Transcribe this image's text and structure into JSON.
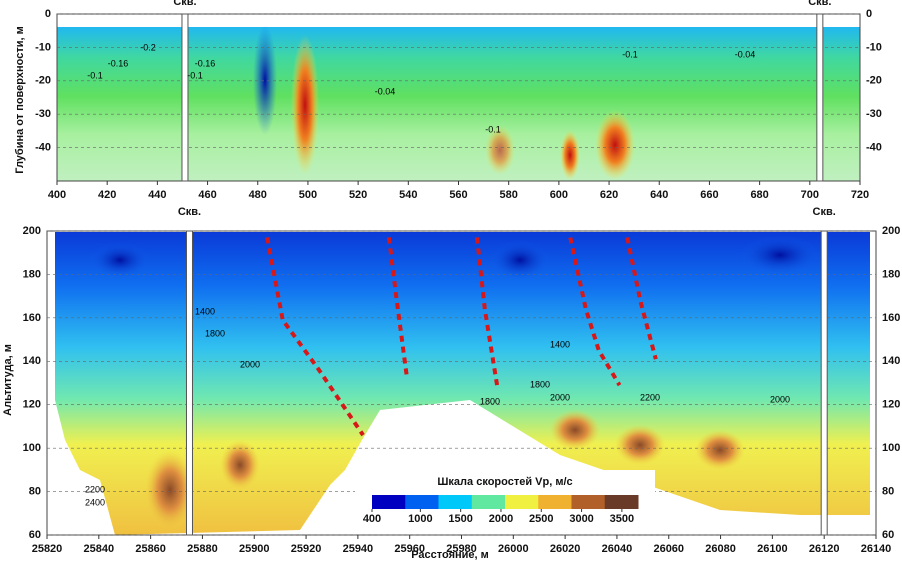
{
  "chart_data": [
    {
      "type": "contour",
      "ylabel": "Глубина от поверхности, м",
      "xlim": [
        400,
        720
      ],
      "xticks": [
        400,
        420,
        440,
        460,
        480,
        500,
        520,
        540,
        560,
        580,
        600,
        620,
        640,
        660,
        680,
        700,
        720
      ],
      "ylim": [
        0,
        -50
      ],
      "yticks": [
        0,
        -10,
        -20,
        -30,
        -40
      ],
      "wells": [
        {
          "x": 451,
          "label": "Скв."
        },
        {
          "x": 704,
          "label": "Скв."
        }
      ],
      "contour_labels": [
        "-0.2",
        "-0.16",
        "-0.1",
        "-0.16",
        "-0.1",
        "-0.04",
        "-0.1",
        "-0.1",
        "-0.04"
      ],
      "grid": true
    },
    {
      "type": "contour",
      "ylabel": "Альтитуда, м",
      "xlabel": "Расстояние, м",
      "xlim": [
        25820,
        26140
      ],
      "xticks": [
        25820,
        25840,
        25860,
        25880,
        25900,
        25920,
        25940,
        25960,
        25980,
        26000,
        26020,
        26040,
        26060,
        26080,
        26100,
        26120,
        26140
      ],
      "ylim": [
        60,
        200
      ],
      "yticks": [
        60,
        80,
        100,
        120,
        140,
        160,
        180,
        200
      ],
      "wells": [
        {
          "x": 25875,
          "label": "Скв."
        },
        {
          "x": 26120,
          "label": "Скв."
        }
      ],
      "faults": [
        {
          "color": "#d81818",
          "x": [
            25905,
            25911,
            25925,
            25942
          ],
          "y": [
            197,
            159,
            136,
            106
          ]
        },
        {
          "color": "#d81818",
          "x": [
            25952,
            25955,
            25959
          ],
          "y": [
            197,
            168,
            132
          ]
        },
        {
          "color": "#d81818",
          "x": [
            25986,
            25989,
            25994
          ],
          "y": [
            197,
            164,
            127
          ]
        },
        {
          "color": "#d81818",
          "x": [
            26022,
            26028,
            26033,
            26041
          ],
          "y": [
            197,
            164,
            145,
            129
          ]
        },
        {
          "color": "#d81818",
          "x": [
            26044,
            26049,
            26055
          ],
          "y": [
            197,
            168,
            141
          ]
        }
      ],
      "contour_labels": [
        "1400",
        "1800",
        "2000",
        "2200",
        "2400",
        "1400",
        "1800",
        "2000",
        "2200",
        "1800",
        "2000"
      ],
      "colorbar": {
        "title": "Шкала скоростей Vp, м/с",
        "lim": [
          400,
          3700
        ],
        "ticks": [
          400,
          1000,
          1500,
          2000,
          2500,
          3000,
          3500
        ],
        "colors": [
          "#0000c0",
          "#0060f0",
          "#00c8f8",
          "#60e8a0",
          "#f0f040",
          "#f0b030",
          "#b06028",
          "#6a3a28"
        ]
      },
      "grid": true
    }
  ]
}
